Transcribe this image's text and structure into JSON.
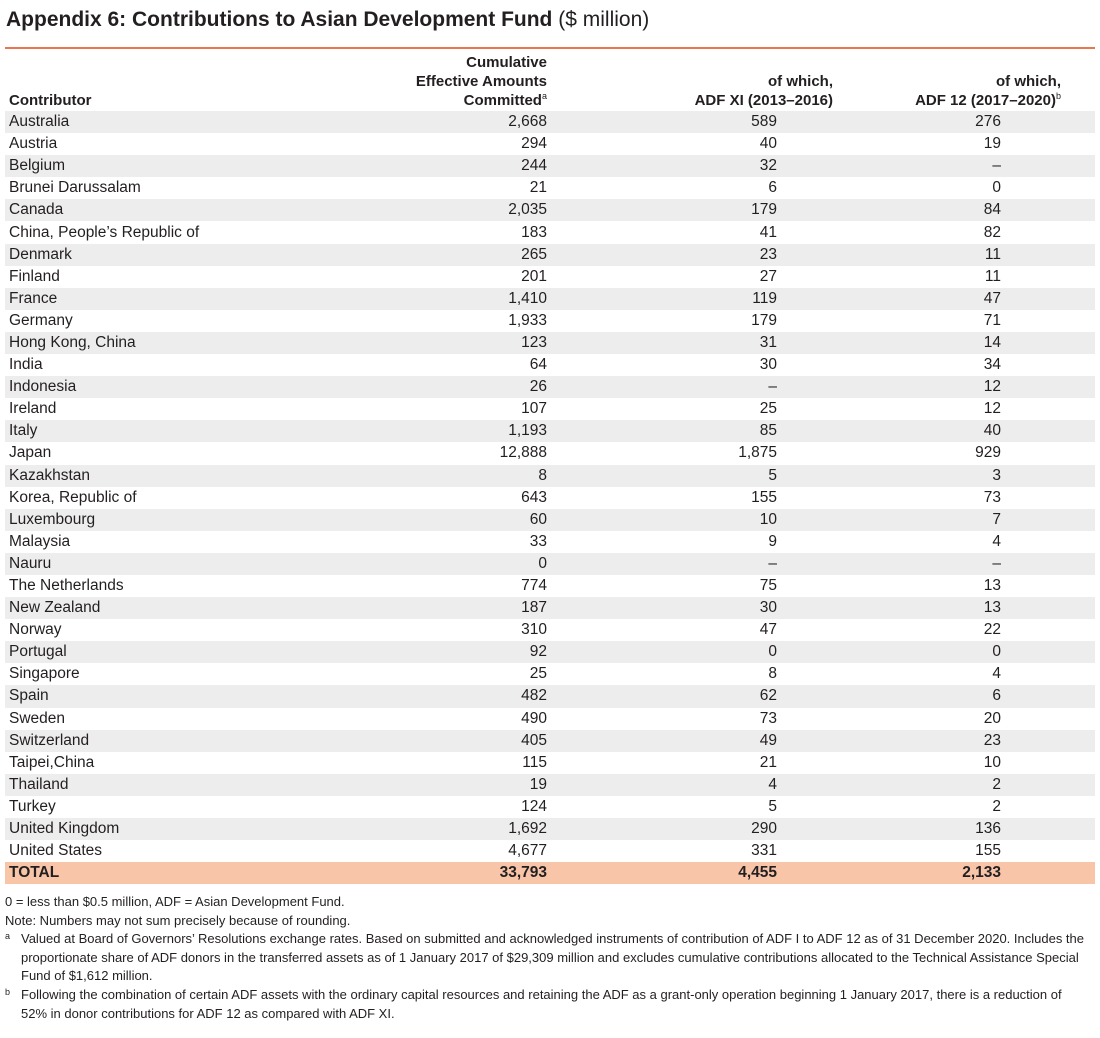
{
  "title": {
    "main": "Appendix 6: Contributions to Asian Development Fund",
    "unit": "($ million)"
  },
  "table": {
    "headers": {
      "contributor": "Contributor",
      "cumulative_line1": "Cumulative",
      "cumulative_line2": "Effective Amounts",
      "cumulative_line3": "Committed",
      "cumulative_note": "a",
      "adf11_line1": "of which,",
      "adf11_line2": "ADF XI (2013–2016)",
      "adf12_line1": "of which,",
      "adf12_line2": "ADF 12 (2017–2020)",
      "adf12_note": "b"
    },
    "rows": [
      {
        "name": "Australia",
        "cumulative": "2,668",
        "adf11": "589",
        "adf12": "276"
      },
      {
        "name": "Austria",
        "cumulative": "294",
        "adf11": "40",
        "adf12": "19"
      },
      {
        "name": "Belgium",
        "cumulative": "244",
        "adf11": "32",
        "adf12": "–"
      },
      {
        "name": "Brunei Darussalam",
        "cumulative": "21",
        "adf11": "6",
        "adf12": "0"
      },
      {
        "name": "Canada",
        "cumulative": "2,035",
        "adf11": "179",
        "adf12": "84"
      },
      {
        "name": "China, People’s Republic of",
        "cumulative": "183",
        "adf11": "41",
        "adf12": "82"
      },
      {
        "name": "Denmark",
        "cumulative": "265",
        "adf11": "23",
        "adf12": "11"
      },
      {
        "name": "Finland",
        "cumulative": "201",
        "adf11": "27",
        "adf12": "11"
      },
      {
        "name": "France",
        "cumulative": "1,410",
        "adf11": "119",
        "adf12": "47"
      },
      {
        "name": "Germany",
        "cumulative": "1,933",
        "adf11": "179",
        "adf12": "71"
      },
      {
        "name": "Hong Kong, China",
        "cumulative": "123",
        "adf11": "31",
        "adf12": "14"
      },
      {
        "name": "India",
        "cumulative": "64",
        "adf11": "30",
        "adf12": "34"
      },
      {
        "name": "Indonesia",
        "cumulative": "26",
        "adf11": "–",
        "adf12": "12"
      },
      {
        "name": "Ireland",
        "cumulative": "107",
        "adf11": "25",
        "adf12": "12"
      },
      {
        "name": "Italy",
        "cumulative": "1,193",
        "adf11": "85",
        "adf12": "40"
      },
      {
        "name": "Japan",
        "cumulative": "12,888",
        "adf11": "1,875",
        "adf12": "929"
      },
      {
        "name": "Kazakhstan",
        "cumulative": "8",
        "adf11": "5",
        "adf12": "3"
      },
      {
        "name": "Korea, Republic of",
        "cumulative": "643",
        "adf11": "155",
        "adf12": "73"
      },
      {
        "name": "Luxembourg",
        "cumulative": "60",
        "adf11": "10",
        "adf12": "7"
      },
      {
        "name": "Malaysia",
        "cumulative": "33",
        "adf11": "9",
        "adf12": "4"
      },
      {
        "name": "Nauru",
        "cumulative": "0",
        "adf11": "–",
        "adf12": "–"
      },
      {
        "name": "The Netherlands",
        "cumulative": "774",
        "adf11": "75",
        "adf12": "13"
      },
      {
        "name": "New Zealand",
        "cumulative": "187",
        "adf11": "30",
        "adf12": "13"
      },
      {
        "name": "Norway",
        "cumulative": "310",
        "adf11": "47",
        "adf12": "22"
      },
      {
        "name": "Portugal",
        "cumulative": "92",
        "adf11": "0",
        "adf12": "0"
      },
      {
        "name": "Singapore",
        "cumulative": "25",
        "adf11": "8",
        "adf12": "4"
      },
      {
        "name": "Spain",
        "cumulative": "482",
        "adf11": "62",
        "adf12": "6"
      },
      {
        "name": "Sweden",
        "cumulative": "490",
        "adf11": "73",
        "adf12": "20"
      },
      {
        "name": "Switzerland",
        "cumulative": "405",
        "adf11": "49",
        "adf12": "23"
      },
      {
        "name": "Taipei,China",
        "cumulative": "115",
        "adf11": "21",
        "adf12": "10"
      },
      {
        "name": "Thailand",
        "cumulative": "19",
        "adf11": "4",
        "adf12": "2"
      },
      {
        "name": "Turkey",
        "cumulative": "124",
        "adf11": "5",
        "adf12": "2"
      },
      {
        "name": "United Kingdom",
        "cumulative": "1,692",
        "adf11": "290",
        "adf12": "136"
      },
      {
        "name": "United States",
        "cumulative": "4,677",
        "adf11": "331",
        "adf12": "155"
      }
    ],
    "total": {
      "name": "TOTAL",
      "cumulative": "33,793",
      "adf11": "4,455",
      "adf12": "2,133"
    }
  },
  "notes": {
    "abbrev": "0 = less than $0.5 million, ADF = Asian Development Fund.",
    "note": "Note: Numbers may not sum precisely because of rounding.",
    "footnote_a_mark": "a",
    "footnote_a": "Valued at Board of Governors’ Resolutions exchange rates. Based on submitted and acknowledged instruments of contribution of ADF I to ADF 12 as of 31 December 2020. Includes the proportionate share of ADF donors in the transferred assets as of 1 January 2017 of $29,309 million and excludes cumulative contributions allocated to the Technical Assistance Special Fund of $1,612 million.",
    "footnote_b_mark": "b",
    "footnote_b": "Following the combination of certain ADF assets with the ordinary capital resources and retaining the ADF as a grant-only operation beginning 1 January 2017, there is a reduction of 52% in donor contributions for ADF 12 as compared with ADF XI."
  },
  "colors": {
    "accent_rule": "#e8764f",
    "total_row": "#f8c5a8",
    "stripe": "#ededee",
    "text": "#231f20"
  }
}
